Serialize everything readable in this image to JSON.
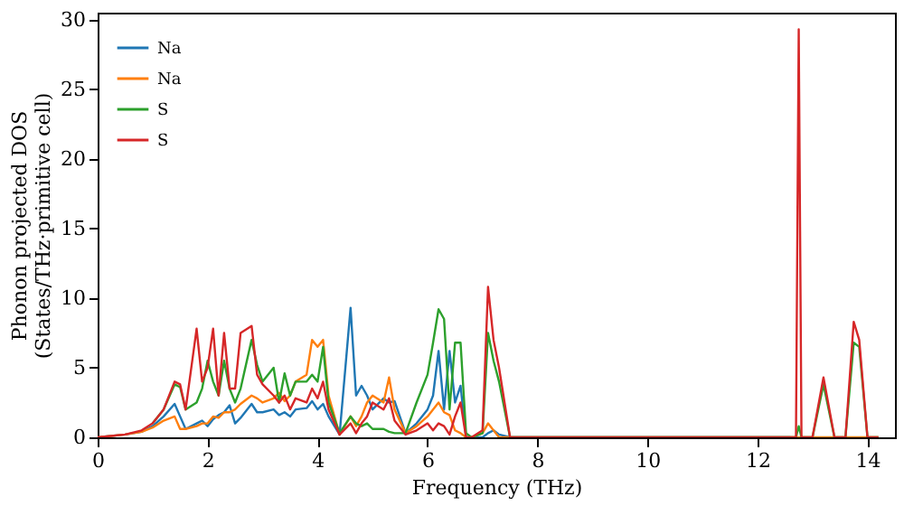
{
  "chart_data": {
    "type": "line",
    "xlabel": "Frequency (THz)",
    "ylabel": "Phonon projected DOS\n(States/THz·primitive cell)",
    "x": [
      0,
      0.5,
      0.8,
      1.0,
      1.2,
      1.4,
      1.5,
      1.6,
      1.8,
      1.9,
      2.0,
      2.1,
      2.2,
      2.3,
      2.4,
      2.5,
      2.6,
      2.8,
      2.9,
      3.0,
      3.2,
      3.3,
      3.4,
      3.5,
      3.6,
      3.8,
      3.9,
      4.0,
      4.1,
      4.2,
      4.4,
      4.6,
      4.7,
      4.8,
      4.9,
      5.0,
      5.2,
      5.3,
      5.4,
      5.6,
      5.8,
      6.0,
      6.1,
      6.2,
      6.3,
      6.4,
      6.5,
      6.6,
      6.7,
      6.8,
      7.0,
      7.1,
      7.2,
      7.3,
      7.5,
      12.6,
      12.7,
      12.75,
      12.8,
      13.0,
      13.2,
      13.4,
      13.6,
      13.75,
      13.85,
      14.0,
      14.2
    ],
    "series": [
      {
        "name": "Na",
        "color": "#1f77b4",
        "values": [
          0,
          0.2,
          0.4,
          0.8,
          1.5,
          2.4,
          1.5,
          0.6,
          1.0,
          1.2,
          0.8,
          1.3,
          1.6,
          1.8,
          2.3,
          1.0,
          1.4,
          2.4,
          1.8,
          1.8,
          2.0,
          1.6,
          1.8,
          1.5,
          2.0,
          2.1,
          2.6,
          2.0,
          2.4,
          1.5,
          0.2,
          9.3,
          3.0,
          3.7,
          3.0,
          2.0,
          2.8,
          2.5,
          2.6,
          0.3,
          1.0,
          2.0,
          3.0,
          6.2,
          2.0,
          6.2,
          2.5,
          3.7,
          0,
          0,
          0,
          0.3,
          0.5,
          0.2,
          0,
          0,
          null,
          null,
          null,
          null,
          null,
          null,
          null,
          null,
          null,
          null,
          null
        ]
      },
      {
        "name": "Na",
        "color": "#ff7f0e",
        "values": [
          0,
          0.2,
          0.4,
          0.7,
          1.2,
          1.5,
          0.6,
          0.6,
          0.8,
          1.0,
          1.0,
          1.5,
          1.4,
          1.8,
          1.8,
          2.0,
          2.4,
          3.0,
          2.8,
          2.5,
          2.8,
          3.2,
          2.6,
          3.0,
          4.0,
          4.5,
          7.0,
          6.5,
          7.0,
          3.0,
          0.2,
          1.5,
          0.8,
          1.5,
          2.5,
          3.0,
          2.5,
          4.3,
          2.0,
          0.3,
          0.8,
          1.5,
          2.0,
          2.5,
          1.8,
          1.6,
          0.5,
          0.3,
          0,
          0,
          0.3,
          1.0,
          0.5,
          0,
          0,
          0,
          0,
          0,
          0,
          0,
          0,
          0,
          0,
          0,
          0,
          0,
          0
        ]
      },
      {
        "name": "S",
        "color": "#2ca02c",
        "values": [
          null,
          null,
          null,
          1.0,
          2.0,
          3.8,
          3.6,
          2.0,
          2.5,
          3.5,
          5.5,
          4.0,
          3.0,
          5.5,
          3.5,
          2.5,
          3.5,
          7.0,
          5.2,
          4.0,
          5.0,
          2.5,
          4.6,
          3.0,
          4.0,
          4.0,
          4.5,
          4.0,
          6.5,
          2.5,
          0.3,
          1.5,
          1.0,
          0.8,
          1.0,
          0.6,
          0.6,
          0.4,
          0.3,
          0.3,
          2.5,
          4.5,
          6.8,
          9.2,
          8.5,
          2.0,
          6.8,
          6.8,
          0.3,
          0,
          0.3,
          7.5,
          5.5,
          4.0,
          0,
          0,
          0,
          0.8,
          0,
          0,
          3.8,
          0,
          0,
          6.8,
          6.5,
          0,
          0
        ]
      },
      {
        "name": "S",
        "color": "#d62728",
        "values": [
          0,
          0.2,
          0.5,
          1.0,
          2.0,
          4.0,
          3.8,
          2.0,
          7.8,
          4.0,
          5.0,
          7.8,
          3.0,
          7.5,
          3.5,
          3.5,
          7.5,
          8.0,
          4.5,
          3.8,
          3.0,
          2.5,
          3.0,
          2.0,
          2.8,
          2.5,
          3.5,
          2.8,
          4.0,
          2.0,
          0.2,
          1.0,
          0.3,
          1.0,
          1.5,
          2.5,
          2.0,
          2.8,
          1.2,
          0.2,
          0.5,
          1.0,
          0.5,
          1.0,
          0.8,
          0.2,
          1.5,
          2.5,
          0,
          0,
          0.5,
          10.8,
          7.0,
          5.0,
          0,
          0,
          0,
          29.3,
          0,
          0,
          4.3,
          0,
          0,
          8.3,
          7.0,
          0,
          0
        ]
      }
    ],
    "xlim": [
      0,
      14.5
    ],
    "xticks": [
      0,
      2,
      4,
      6,
      8,
      10,
      12,
      14
    ],
    "ylim": [
      0,
      30.5
    ],
    "yticks": [
      0,
      5,
      10,
      15,
      20,
      25,
      30
    ],
    "grid": false,
    "legend": "top left",
    "line_style": "solid",
    "marker": "none"
  }
}
